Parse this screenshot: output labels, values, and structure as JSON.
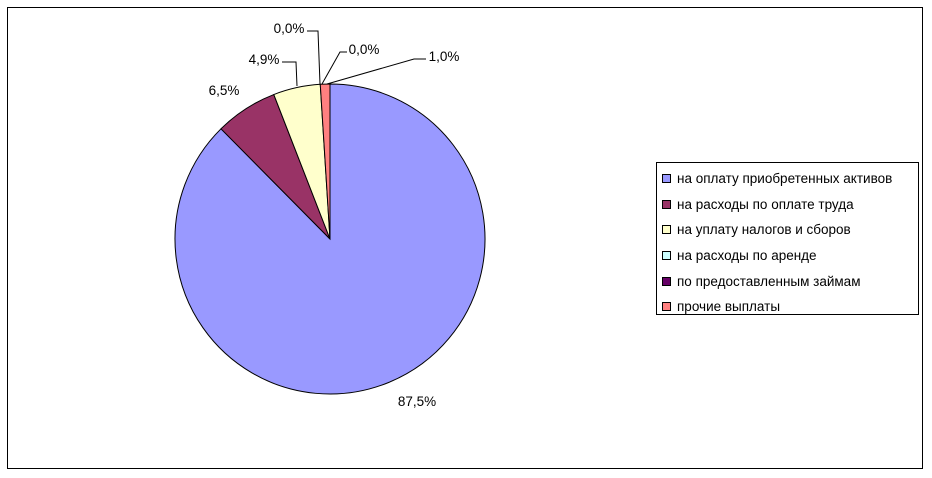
{
  "chart_data": {
    "type": "pie",
    "title": "",
    "legend_position": "right",
    "slices": [
      {
        "label": "на оплату приобретенных активов",
        "value": 87.5,
        "value_label": "87,5%",
        "color": "#9999ff"
      },
      {
        "label": "на расходы по оплате труда",
        "value": 6.5,
        "value_label": "6,5%",
        "color": "#993366"
      },
      {
        "label": "на уплату налогов и сборов",
        "value": 4.9,
        "value_label": "4,9%",
        "color": "#ffffcc"
      },
      {
        "label": "на расходы по аренде",
        "value": 0.0,
        "value_label": "0,0%",
        "color": "#ccffff"
      },
      {
        "label": "по предоставленным займам",
        "value": 0.0,
        "value_label": "0,0%",
        "color": "#660066"
      },
      {
        "label": "прочие выплаты",
        "value": 1.0,
        "value_label": "1,0%",
        "color": "#ff8080"
      }
    ]
  }
}
